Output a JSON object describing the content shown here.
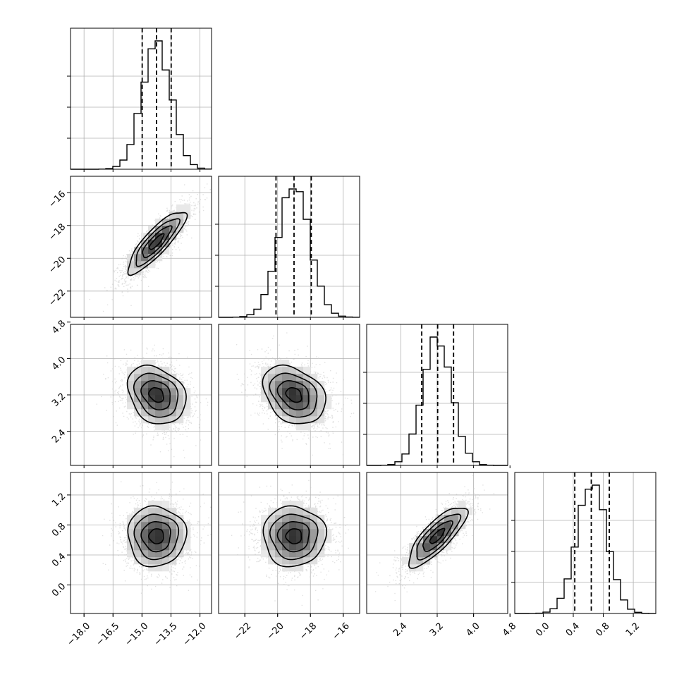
{
  "chart_data": {
    "type": "corner",
    "grid": true,
    "ticks": {
      "p0": [
        "−18.0",
        "−16.5",
        "−15.0",
        "−13.5",
        "−12.0"
      ],
      "p1": [
        "−22",
        "−20",
        "−18",
        "−16"
      ],
      "p2": [
        "2.4",
        "3.2",
        "4.0",
        "4.8"
      ],
      "p3": [
        "0.0",
        "0.4",
        "0.8",
        "1.2"
      ]
    },
    "params": [
      {
        "range": [
          -18.7,
          -11.4
        ],
        "tick_values": [
          -18.0,
          -16.5,
          -15.0,
          -13.5,
          -12.0
        ],
        "mean": -14.25,
        "sd": 0.75,
        "quantiles": [
          -14.99,
          -14.25,
          -13.49
        ]
      },
      {
        "range": [
          -23.6,
          -15.0
        ],
        "tick_values": [
          -22,
          -20,
          -18,
          -16
        ],
        "mean": -19.0,
        "sd": 0.95,
        "quantiles": [
          -20.1,
          -19.0,
          -17.95
        ]
      },
      {
        "range": [
          1.65,
          4.75
        ],
        "tick_values": [
          2.4,
          3.2,
          4.0,
          4.8
        ],
        "mean": 3.2,
        "sd": 0.32,
        "quantiles": [
          2.86,
          3.21,
          3.56
        ]
      },
      {
        "range": [
          -0.38,
          1.5
        ],
        "tick_values": [
          0.0,
          0.4,
          0.8,
          1.2
        ],
        "mean": 0.65,
        "sd": 0.2,
        "quantiles": [
          0.42,
          0.64,
          0.88
        ]
      }
    ],
    "correlations": [
      {
        "pair": [
          0,
          1
        ],
        "rho": 0.85
      },
      {
        "pair": [
          0,
          2
        ],
        "rho": -0.25
      },
      {
        "pair": [
          1,
          2
        ],
        "rho": -0.3
      },
      {
        "pair": [
          0,
          3
        ],
        "rho": 0.0
      },
      {
        "pair": [
          1,
          3
        ],
        "rho": 0.0
      },
      {
        "pair": [
          2,
          3
        ],
        "rho": 0.8
      }
    ],
    "histogram_bins": 20,
    "colors": {
      "line": "#000000",
      "scatter": "#c8c8c8",
      "grid": "#b0b0b0"
    }
  }
}
